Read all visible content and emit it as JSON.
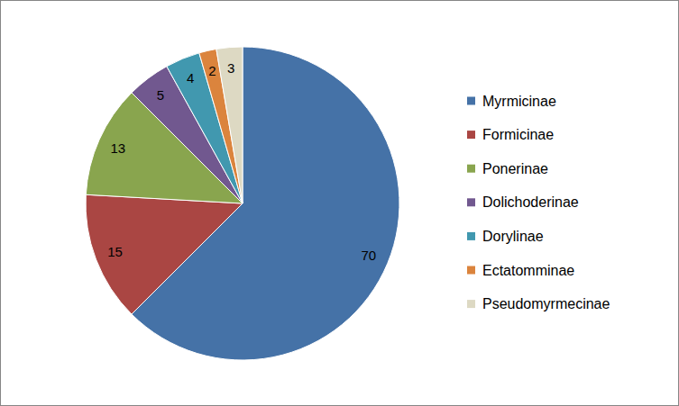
{
  "chart_data": {
    "type": "pie",
    "categories": [
      "Myrmicinae",
      "Formicinae",
      "Ponerinae",
      "Dolichoderinae",
      "Dorylinae",
      "Ectatomminae",
      "Pseudomyrmecinae"
    ],
    "values": [
      70,
      15,
      13,
      5,
      4,
      2,
      3
    ],
    "colors": [
      "#4572a7",
      "#aa4643",
      "#89a54e",
      "#71588f",
      "#4198af",
      "#db843d",
      "#ddd9c3"
    ],
    "data_labels": true,
    "legend": "right"
  }
}
